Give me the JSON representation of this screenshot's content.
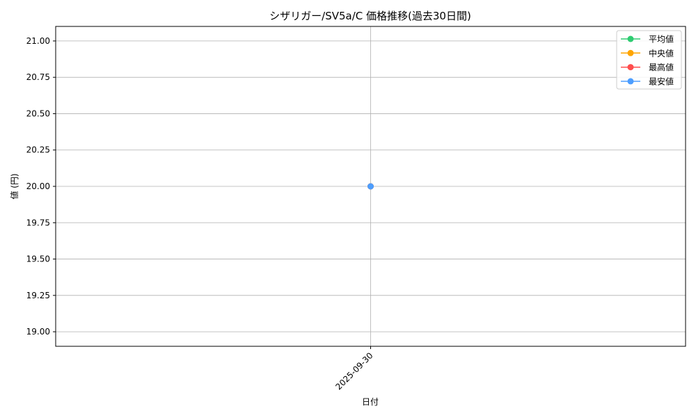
{
  "chart_data": {
    "type": "line",
    "title": "シザリガー/SV5a/C 価格推移(過去30日間)",
    "xlabel": "日付",
    "ylabel": "値 (円)",
    "categories": [
      "2025-09-30"
    ],
    "ylim": [
      18.9,
      21.1
    ],
    "yticks": [
      19.0,
      19.25,
      19.5,
      19.75,
      20.0,
      20.25,
      20.5,
      20.75,
      21.0
    ],
    "ytick_labels": [
      "19.00",
      "19.25",
      "19.50",
      "19.75",
      "20.00",
      "20.25",
      "20.50",
      "20.75",
      "21.00"
    ],
    "grid": true,
    "legend_placement": "top-right",
    "series": [
      {
        "name": "平均値",
        "values": [
          20.0
        ],
        "color": "#2ecc71"
      },
      {
        "name": "中央値",
        "values": [
          20.0
        ],
        "color": "#ffa500"
      },
      {
        "name": "最高値",
        "values": [
          20.0
        ],
        "color": "#ff4d4d"
      },
      {
        "name": "最安値",
        "values": [
          20.0
        ],
        "color": "#4d9eff"
      }
    ]
  }
}
